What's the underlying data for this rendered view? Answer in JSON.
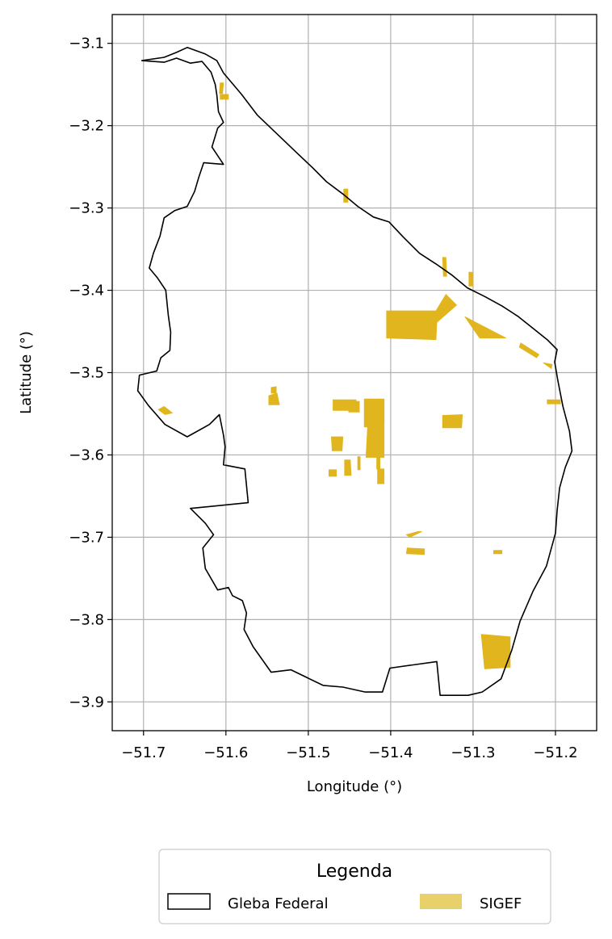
{
  "chart_data": {
    "type": "map",
    "xlabel": "Longitude (°)",
    "ylabel": "Latitude (°)",
    "xlim": [
      -51.738,
      -51.15
    ],
    "ylim": [
      -3.935,
      -3.065
    ],
    "x_ticks": [
      -51.7,
      -51.6,
      -51.5,
      -51.4,
      -51.3,
      -51.2
    ],
    "x_tick_labels": [
      "−51.7",
      "−51.6",
      "−51.5",
      "−51.4",
      "−51.3",
      "−51.2"
    ],
    "y_ticks": [
      -3.1,
      -3.2,
      -3.3,
      -3.4,
      -3.5,
      -3.6,
      -3.7,
      -3.8,
      -3.9
    ],
    "y_tick_labels": [
      "−3.1",
      "−3.2",
      "−3.3",
      "−3.4",
      "−3.5",
      "−3.6",
      "−3.7",
      "−3.8",
      "−3.9"
    ],
    "grid": true,
    "legend": {
      "title": "Legenda",
      "placement": "bottom-center",
      "entries": [
        {
          "label": "Gleba Federal",
          "style": "outline",
          "color": "#000000"
        },
        {
          "label": "SIGEF",
          "style": "fill",
          "color": "#e8d06a"
        }
      ]
    },
    "colors": {
      "gleba_outline": "#000000",
      "sigef_fill": "#e0b51e",
      "grid": "#b0b0b0"
    },
    "gleba_federal_outline": [
      [
        -51.702,
        -3.121
      ],
      [
        -51.675,
        -3.117
      ],
      [
        -51.66,
        -3.111
      ],
      [
        -51.647,
        -3.105
      ],
      [
        -51.625,
        -3.113
      ],
      [
        -51.611,
        -3.121
      ],
      [
        -51.603,
        -3.136
      ],
      [
        -51.581,
        -3.162
      ],
      [
        -51.562,
        -3.187
      ],
      [
        -51.54,
        -3.208
      ],
      [
        -51.515,
        -3.232
      ],
      [
        -51.495,
        -3.251
      ],
      [
        -51.478,
        -3.268
      ],
      [
        -51.458,
        -3.283
      ],
      [
        -51.44,
        -3.298
      ],
      [
        -51.421,
        -3.311
      ],
      [
        -51.402,
        -3.317
      ],
      [
        -51.385,
        -3.335
      ],
      [
        -51.365,
        -3.355
      ],
      [
        -51.345,
        -3.368
      ],
      [
        -51.325,
        -3.382
      ],
      [
        -51.307,
        -3.397
      ],
      [
        -51.285,
        -3.408
      ],
      [
        -51.265,
        -3.419
      ],
      [
        -51.245,
        -3.432
      ],
      [
        -51.225,
        -3.448
      ],
      [
        -51.21,
        -3.46
      ],
      [
        -51.198,
        -3.472
      ],
      [
        -51.201,
        -3.487
      ],
      [
        -51.197,
        -3.51
      ],
      [
        -51.191,
        -3.541
      ],
      [
        -51.183,
        -3.571
      ],
      [
        -51.18,
        -3.595
      ],
      [
        -51.188,
        -3.615
      ],
      [
        -51.195,
        -3.64
      ],
      [
        -51.198,
        -3.668
      ],
      [
        -51.2,
        -3.695
      ],
      [
        -51.211,
        -3.735
      ],
      [
        -51.227,
        -3.765
      ],
      [
        -51.243,
        -3.802
      ],
      [
        -51.253,
        -3.837
      ],
      [
        -51.266,
        -3.872
      ],
      [
        -51.289,
        -3.888
      ],
      [
        -51.306,
        -3.892
      ],
      [
        -51.34,
        -3.892
      ],
      [
        -51.344,
        -3.851
      ],
      [
        -51.401,
        -3.859
      ],
      [
        -51.41,
        -3.888
      ],
      [
        -51.431,
        -3.888
      ],
      [
        -51.458,
        -3.882
      ],
      [
        -51.482,
        -3.88
      ],
      [
        -51.521,
        -3.861
      ],
      [
        -51.545,
        -3.864
      ],
      [
        -51.567,
        -3.833
      ],
      [
        -51.578,
        -3.812
      ],
      [
        -51.575,
        -3.792
      ],
      [
        -51.58,
        -3.777
      ],
      [
        -51.592,
        -3.771
      ],
      [
        -51.597,
        -3.761
      ],
      [
        -51.61,
        -3.764
      ],
      [
        -51.625,
        -3.738
      ],
      [
        -51.628,
        -3.713
      ],
      [
        -51.615,
        -3.697
      ],
      [
        -51.625,
        -3.683
      ],
      [
        -51.643,
        -3.665
      ],
      [
        -51.573,
        -3.658
      ],
      [
        -51.577,
        -3.617
      ],
      [
        -51.603,
        -3.612
      ],
      [
        -51.601,
        -3.59
      ],
      [
        -51.603,
        -3.576
      ],
      [
        -51.608,
        -3.551
      ],
      [
        -51.62,
        -3.563
      ],
      [
        -51.647,
        -3.578
      ],
      [
        -51.674,
        -3.563
      ],
      [
        -51.694,
        -3.54
      ],
      [
        -51.707,
        -3.522
      ],
      [
        -51.705,
        -3.503
      ],
      [
        -51.684,
        -3.498
      ],
      [
        -51.679,
        -3.482
      ],
      [
        -51.668,
        -3.473
      ],
      [
        -51.667,
        -3.451
      ],
      [
        -51.67,
        -3.43
      ],
      [
        -51.673,
        -3.4
      ],
      [
        -51.683,
        -3.385
      ],
      [
        -51.693,
        -3.373
      ],
      [
        -51.688,
        -3.355
      ],
      [
        -51.68,
        -3.334
      ],
      [
        -51.675,
        -3.312
      ],
      [
        -51.662,
        -3.303
      ],
      [
        -51.647,
        -3.298
      ],
      [
        -51.638,
        -3.28
      ],
      [
        -51.633,
        -3.263
      ],
      [
        -51.627,
        -3.245
      ],
      [
        -51.603,
        -3.247
      ],
      [
        -51.617,
        -3.226
      ],
      [
        -51.61,
        -3.203
      ],
      [
        -51.603,
        -3.196
      ],
      [
        -51.609,
        -3.183
      ],
      [
        -51.611,
        -3.163
      ],
      [
        -51.613,
        -3.15
      ],
      [
        -51.618,
        -3.135
      ],
      [
        -51.629,
        -3.122
      ],
      [
        -51.643,
        -3.124
      ],
      [
        -51.66,
        -3.118
      ],
      [
        -51.675,
        -3.123
      ]
    ],
    "sigef_parcels": [
      [
        [
          -51.405,
          -3.425
        ],
        [
          -51.345,
          -3.425
        ],
        [
          -51.333,
          -3.405
        ],
        [
          -51.32,
          -3.418
        ],
        [
          -51.344,
          -3.439
        ],
        [
          -51.345,
          -3.46
        ],
        [
          -51.405,
          -3.458
        ]
      ],
      [
        [
          -51.31,
          -3.432
        ],
        [
          -51.292,
          -3.458
        ],
        [
          -51.26,
          -3.458
        ]
      ],
      [
        [
          -51.47,
          -3.533
        ],
        [
          -51.442,
          -3.533
        ],
        [
          -51.442,
          -3.546
        ],
        [
          -51.47,
          -3.546
        ]
      ],
      [
        [
          -51.451,
          -3.535
        ],
        [
          -51.438,
          -3.535
        ],
        [
          -51.438,
          -3.548
        ],
        [
          -51.451,
          -3.548
        ]
      ],
      [
        [
          -51.432,
          -3.532
        ],
        [
          -51.408,
          -3.532
        ],
        [
          -51.408,
          -3.603
        ],
        [
          -51.43,
          -3.603
        ],
        [
          -51.428,
          -3.566
        ],
        [
          -51.432,
          -3.566
        ]
      ],
      [
        [
          -51.337,
          -3.552
        ],
        [
          -51.313,
          -3.551
        ],
        [
          -51.314,
          -3.567
        ],
        [
          -51.337,
          -3.567
        ]
      ],
      [
        [
          -51.472,
          -3.578
        ],
        [
          -51.458,
          -3.578
        ],
        [
          -51.459,
          -3.595
        ],
        [
          -51.471,
          -3.595
        ]
      ],
      [
        [
          -51.456,
          -3.606
        ],
        [
          -51.449,
          -3.606
        ],
        [
          -51.448,
          -3.625
        ],
        [
          -51.456,
          -3.625
        ]
      ],
      [
        [
          -51.416,
          -3.617
        ],
        [
          -51.408,
          -3.617
        ],
        [
          -51.408,
          -3.635
        ],
        [
          -51.416,
          -3.635
        ]
      ],
      [
        [
          -51.475,
          -3.618
        ],
        [
          -51.466,
          -3.618
        ],
        [
          -51.466,
          -3.626
        ],
        [
          -51.475,
          -3.626
        ]
      ],
      [
        [
          -51.548,
          -3.528
        ],
        [
          -51.538,
          -3.525
        ],
        [
          -51.535,
          -3.539
        ],
        [
          -51.548,
          -3.539
        ]
      ],
      [
        [
          -51.545,
          -3.518
        ],
        [
          -51.539,
          -3.517
        ],
        [
          -51.539,
          -3.525
        ],
        [
          -51.545,
          -3.525
        ]
      ],
      [
        [
          -51.682,
          -3.545
        ],
        [
          -51.675,
          -3.541
        ],
        [
          -51.665,
          -3.549
        ],
        [
          -51.674,
          -3.551
        ]
      ],
      [
        [
          -51.38,
          -3.713
        ],
        [
          -51.359,
          -3.714
        ],
        [
          -51.359,
          -3.721
        ],
        [
          -51.381,
          -3.72
        ]
      ],
      [
        [
          -51.381,
          -3.697
        ],
        [
          -51.367,
          -3.693
        ],
        [
          -51.362,
          -3.693
        ],
        [
          -51.377,
          -3.7
        ]
      ],
      [
        [
          -51.275,
          -3.716
        ],
        [
          -51.265,
          -3.716
        ],
        [
          -51.265,
          -3.72
        ],
        [
          -51.275,
          -3.72
        ]
      ],
      [
        [
          -51.29,
          -3.818
        ],
        [
          -51.255,
          -3.821
        ],
        [
          -51.255,
          -3.858
        ],
        [
          -51.286,
          -3.86
        ]
      ],
      [
        [
          -51.242,
          -3.464
        ],
        [
          -51.22,
          -3.478
        ],
        [
          -51.223,
          -3.482
        ],
        [
          -51.244,
          -3.469
        ]
      ],
      [
        [
          -51.215,
          -3.488
        ],
        [
          -51.204,
          -3.49
        ],
        [
          -51.205,
          -3.495
        ]
      ],
      [
        [
          -51.21,
          -3.533
        ],
        [
          -51.194,
          -3.533
        ],
        [
          -51.194,
          -3.538
        ],
        [
          -51.21,
          -3.538
        ]
      ],
      [
        [
          -51.607,
          -3.162
        ],
        [
          -51.597,
          -3.162
        ],
        [
          -51.597,
          -3.168
        ],
        [
          -51.607,
          -3.168
        ]
      ],
      [
        [
          -51.607,
          -3.148
        ],
        [
          -51.603,
          -3.148
        ],
        [
          -51.604,
          -3.161
        ],
        [
          -51.608,
          -3.161
        ]
      ],
      [
        [
          -51.457,
          -3.277
        ],
        [
          -51.452,
          -3.277
        ],
        [
          -51.452,
          -3.293
        ],
        [
          -51.457,
          -3.293
        ]
      ],
      [
        [
          -51.337,
          -3.36
        ],
        [
          -51.333,
          -3.36
        ],
        [
          -51.332,
          -3.383
        ],
        [
          -51.336,
          -3.383
        ]
      ],
      [
        [
          -51.305,
          -3.378
        ],
        [
          -51.3,
          -3.378
        ],
        [
          -51.3,
          -3.395
        ],
        [
          -51.305,
          -3.395
        ]
      ],
      [
        [
          -51.415,
          -3.536
        ],
        [
          -51.408,
          -3.536
        ],
        [
          -51.408,
          -3.56
        ],
        [
          -51.415,
          -3.56
        ]
      ],
      [
        [
          -51.44,
          -3.602
        ],
        [
          -51.437,
          -3.602
        ],
        [
          -51.437,
          -3.618
        ],
        [
          -51.44,
          -3.618
        ]
      ],
      [
        [
          -51.417,
          -3.597
        ],
        [
          -51.413,
          -3.597
        ],
        [
          -51.413,
          -3.617
        ],
        [
          -51.417,
          -3.617
        ]
      ]
    ]
  }
}
